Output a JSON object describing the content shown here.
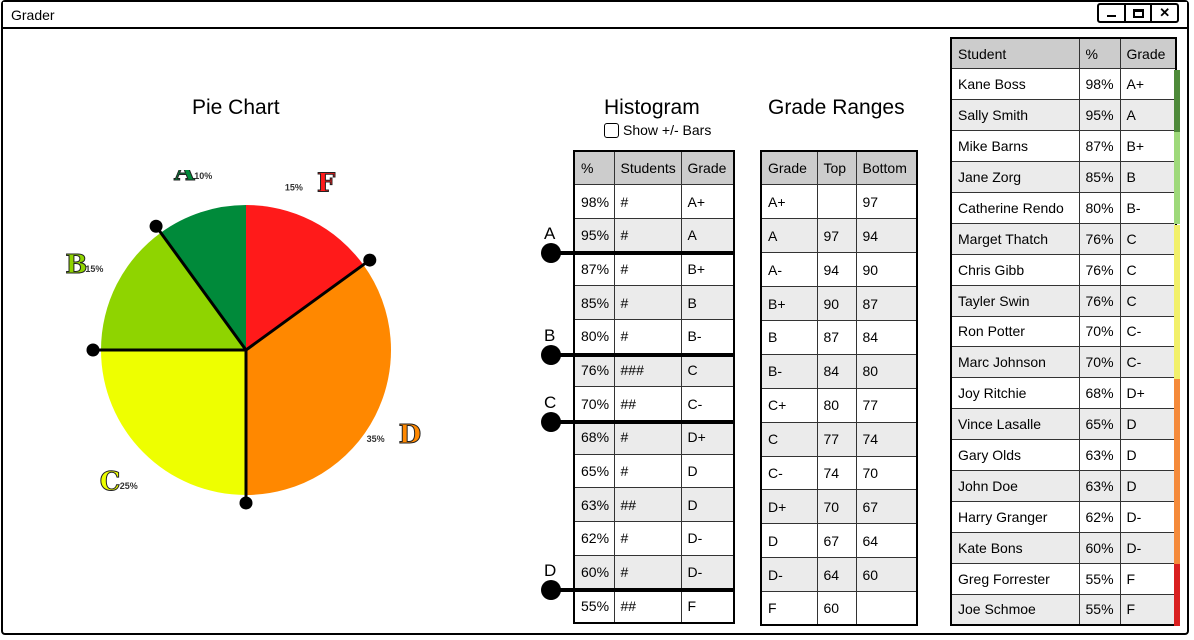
{
  "window": {
    "title": "Grader",
    "controls": [
      "_",
      "□",
      "✕"
    ]
  },
  "pie": {
    "heading": "Pie Chart",
    "slices": [
      {
        "grade": "F",
        "pct": 15,
        "label": "15%",
        "color": "#ff1a1a"
      },
      {
        "grade": "D",
        "pct": 35,
        "label": "35%",
        "color": "#ff8800"
      },
      {
        "grade": "C",
        "pct": 25,
        "label": "25%",
        "color": "#eeff00"
      },
      {
        "grade": "B",
        "pct": 15,
        "label": "15%",
        "color": "#8fd400"
      },
      {
        "grade": "A",
        "pct": 10,
        "label": "10%",
        "color": "#008a3a"
      }
    ]
  },
  "histogram": {
    "heading": "Histogram",
    "checkbox_label": "Show +/- Bars",
    "headers": [
      "%",
      "Students",
      "Grade"
    ],
    "rows": [
      [
        "98%",
        "#",
        "A+"
      ],
      [
        "95%",
        "#",
        "A"
      ],
      [
        "87%",
        "#",
        "B+"
      ],
      [
        "85%",
        "#",
        "B"
      ],
      [
        "80%",
        "#",
        "B-"
      ],
      [
        "76%",
        "###",
        "C"
      ],
      [
        "70%",
        "##",
        "C-"
      ],
      [
        "68%",
        "#",
        "D+"
      ],
      [
        "65%",
        "#",
        "D"
      ],
      [
        "63%",
        "##",
        "D"
      ],
      [
        "62%",
        "#",
        "D-"
      ],
      [
        "60%",
        "#",
        "D-"
      ],
      [
        "55%",
        "##",
        "F"
      ]
    ],
    "cutoffs": [
      {
        "label": "A",
        "after_row": 1
      },
      {
        "label": "B",
        "after_row": 4
      },
      {
        "label": "C",
        "after_row": 6
      },
      {
        "label": "D",
        "after_row": 11
      }
    ]
  },
  "ranges": {
    "heading": "Grade Ranges",
    "headers": [
      "Grade",
      "Top",
      "Bottom"
    ],
    "rows": [
      [
        "A+",
        "",
        "97"
      ],
      [
        "A",
        "97",
        "94"
      ],
      [
        "A-",
        "94",
        "90"
      ],
      [
        "B+",
        "90",
        "87"
      ],
      [
        "B",
        "87",
        "84"
      ],
      [
        "B-",
        "84",
        "80"
      ],
      [
        "C+",
        "80",
        "77"
      ],
      [
        "C",
        "77",
        "74"
      ],
      [
        "C-",
        "74",
        "70"
      ],
      [
        "D+",
        "70",
        "67"
      ],
      [
        "D",
        "67",
        "64"
      ],
      [
        "D-",
        "64",
        "60"
      ],
      [
        "F",
        "60",
        ""
      ]
    ]
  },
  "students": {
    "headers": [
      "Student",
      "%",
      "Grade"
    ],
    "rows": [
      [
        "Kane Boss",
        "98%",
        "A+"
      ],
      [
        "Sally Smith",
        "95%",
        "A"
      ],
      [
        "Mike Barns",
        "87%",
        "B+"
      ],
      [
        "Jane Zorg",
        "85%",
        "B"
      ],
      [
        "Catherine Rendo",
        "80%",
        "B-"
      ],
      [
        "Marget Thatch",
        "76%",
        "C"
      ],
      [
        "Chris Gibb",
        "76%",
        "C"
      ],
      [
        "Tayler Swin",
        "76%",
        "C"
      ],
      [
        "Ron Potter",
        "70%",
        "C-"
      ],
      [
        "Marc Johnson",
        "70%",
        "C-"
      ],
      [
        "Joy Ritchie",
        "68%",
        "D+"
      ],
      [
        "Vince Lasalle",
        "65%",
        "D"
      ],
      [
        "Gary Olds",
        "63%",
        "D"
      ],
      [
        "John Doe",
        "63%",
        "D"
      ],
      [
        "Harry Granger",
        "62%",
        "D-"
      ],
      [
        "Kate Bons",
        "60%",
        "D-"
      ],
      [
        "Greg Forrester",
        "55%",
        "F"
      ],
      [
        "Joe Schmoe",
        "55%",
        "F"
      ]
    ],
    "grade_colors": {
      "A": "#4e8a3a",
      "B": "#9ed97a",
      "C": "#f2f06a",
      "D": "#f58a3a",
      "F": "#d92020"
    }
  }
}
